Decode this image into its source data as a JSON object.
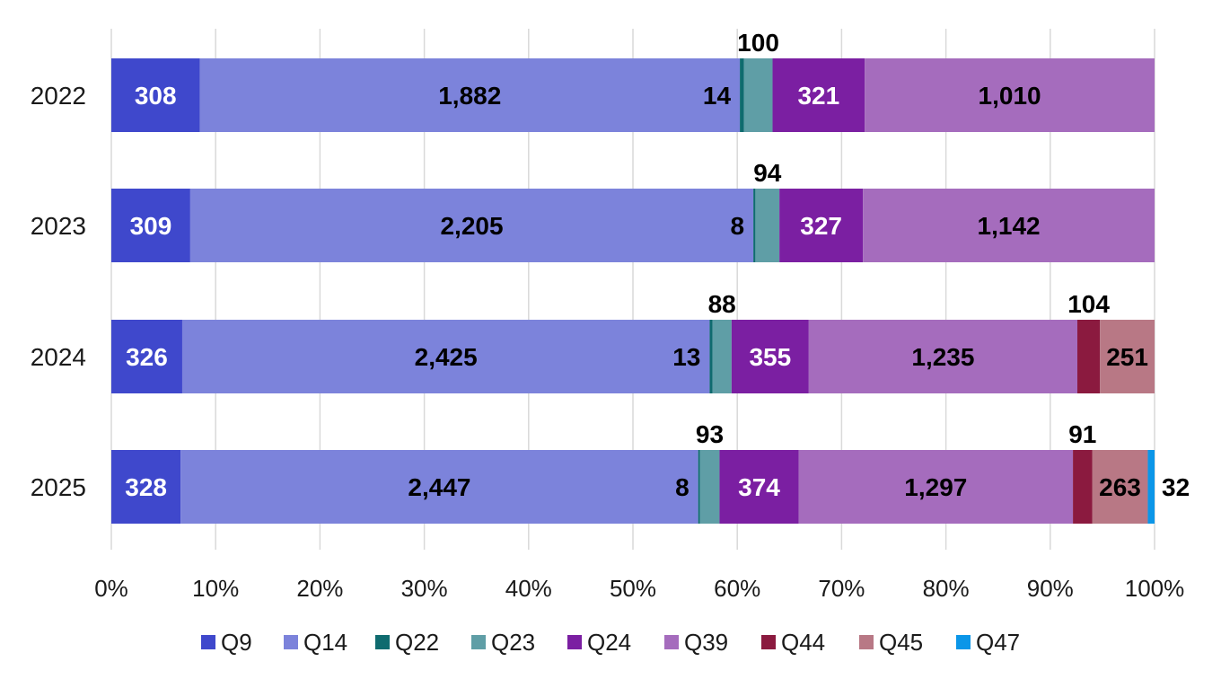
{
  "chart_data": {
    "type": "bar",
    "orientation": "horizontal",
    "stacking": "percent",
    "categories": [
      "2022",
      "2023",
      "2024",
      "2025"
    ],
    "series": [
      {
        "name": "Q9",
        "color": "#3f48cc",
        "values": [
          308,
          309,
          326,
          328
        ]
      },
      {
        "name": "Q14",
        "color": "#7c83db",
        "values": [
          1882,
          2205,
          2425,
          2447
        ]
      },
      {
        "name": "Q22",
        "color": "#0f6b6f",
        "values": [
          14,
          8,
          13,
          8
        ]
      },
      {
        "name": "Q23",
        "color": "#5f9ea6",
        "values": [
          100,
          94,
          88,
          93
        ]
      },
      {
        "name": "Q24",
        "color": "#7b1fa2",
        "values": [
          321,
          327,
          355,
          374
        ]
      },
      {
        "name": "Q39",
        "color": "#a56cbd",
        "values": [
          1010,
          1142,
          1235,
          1297
        ]
      },
      {
        "name": "Q44",
        "color": "#8b1a3f",
        "values": [
          null,
          null,
          104,
          91
        ]
      },
      {
        "name": "Q45",
        "color": "#b87885",
        "values": [
          null,
          null,
          251,
          263
        ]
      },
      {
        "name": "Q47",
        "color": "#0b96e8",
        "values": [
          null,
          null,
          null,
          32
        ]
      }
    ],
    "data_labels": [
      [
        "308",
        "1,882",
        "14",
        "100",
        "321",
        "1,010",
        null,
        null,
        null
      ],
      [
        "309",
        "2,205",
        "8",
        "94",
        "327",
        "1,142",
        null,
        null,
        null
      ],
      [
        "326",
        "2,425",
        "13",
        "88",
        "355",
        "1,235",
        "104",
        "251",
        null
      ],
      [
        "328",
        "2,447",
        "8",
        "93",
        "374",
        "1,297",
        "91",
        "263",
        "32"
      ]
    ],
    "x_ticks": [
      "0%",
      "10%",
      "20%",
      "30%",
      "40%",
      "50%",
      "60%",
      "70%",
      "80%",
      "90%",
      "100%"
    ],
    "xlim": [
      0,
      100
    ],
    "grid": "vertical",
    "legend_position": "bottom",
    "title": "",
    "xlabel": "",
    "ylabel": ""
  }
}
